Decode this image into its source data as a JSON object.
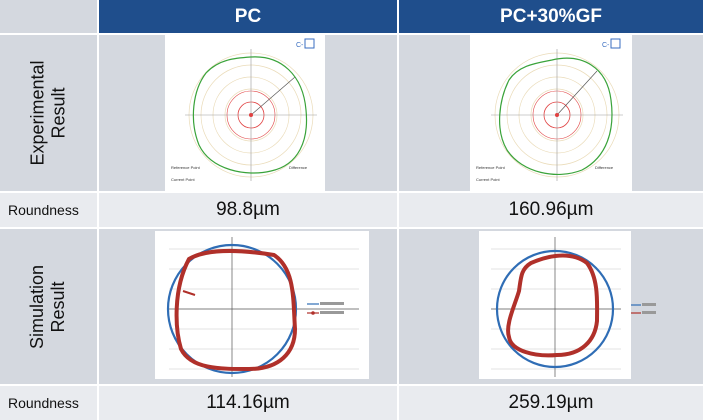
{
  "table": {
    "headers": {
      "col1": "PC",
      "col2": "PC+30%GF"
    },
    "rows": {
      "experimental": {
        "line1": "Experimental",
        "line2": "Result"
      },
      "roundness1": {
        "label": "Roundness",
        "pc": "98.8µm",
        "pcgf": "160.96µm"
      },
      "simulation": {
        "line1": "Simulation",
        "line2": "Result"
      },
      "roundness2": {
        "label": "Roundness",
        "pc": "114.16µm",
        "pcgf": "259.19µm"
      }
    }
  },
  "colors": {
    "header": "#1f4e8c",
    "row_gray": "#d4d8df",
    "row_light": "#e9ebef",
    "circle_blue": "#2f6db5",
    "profile_red": "#b0302a",
    "polar_green": "#3aa33a"
  }
}
